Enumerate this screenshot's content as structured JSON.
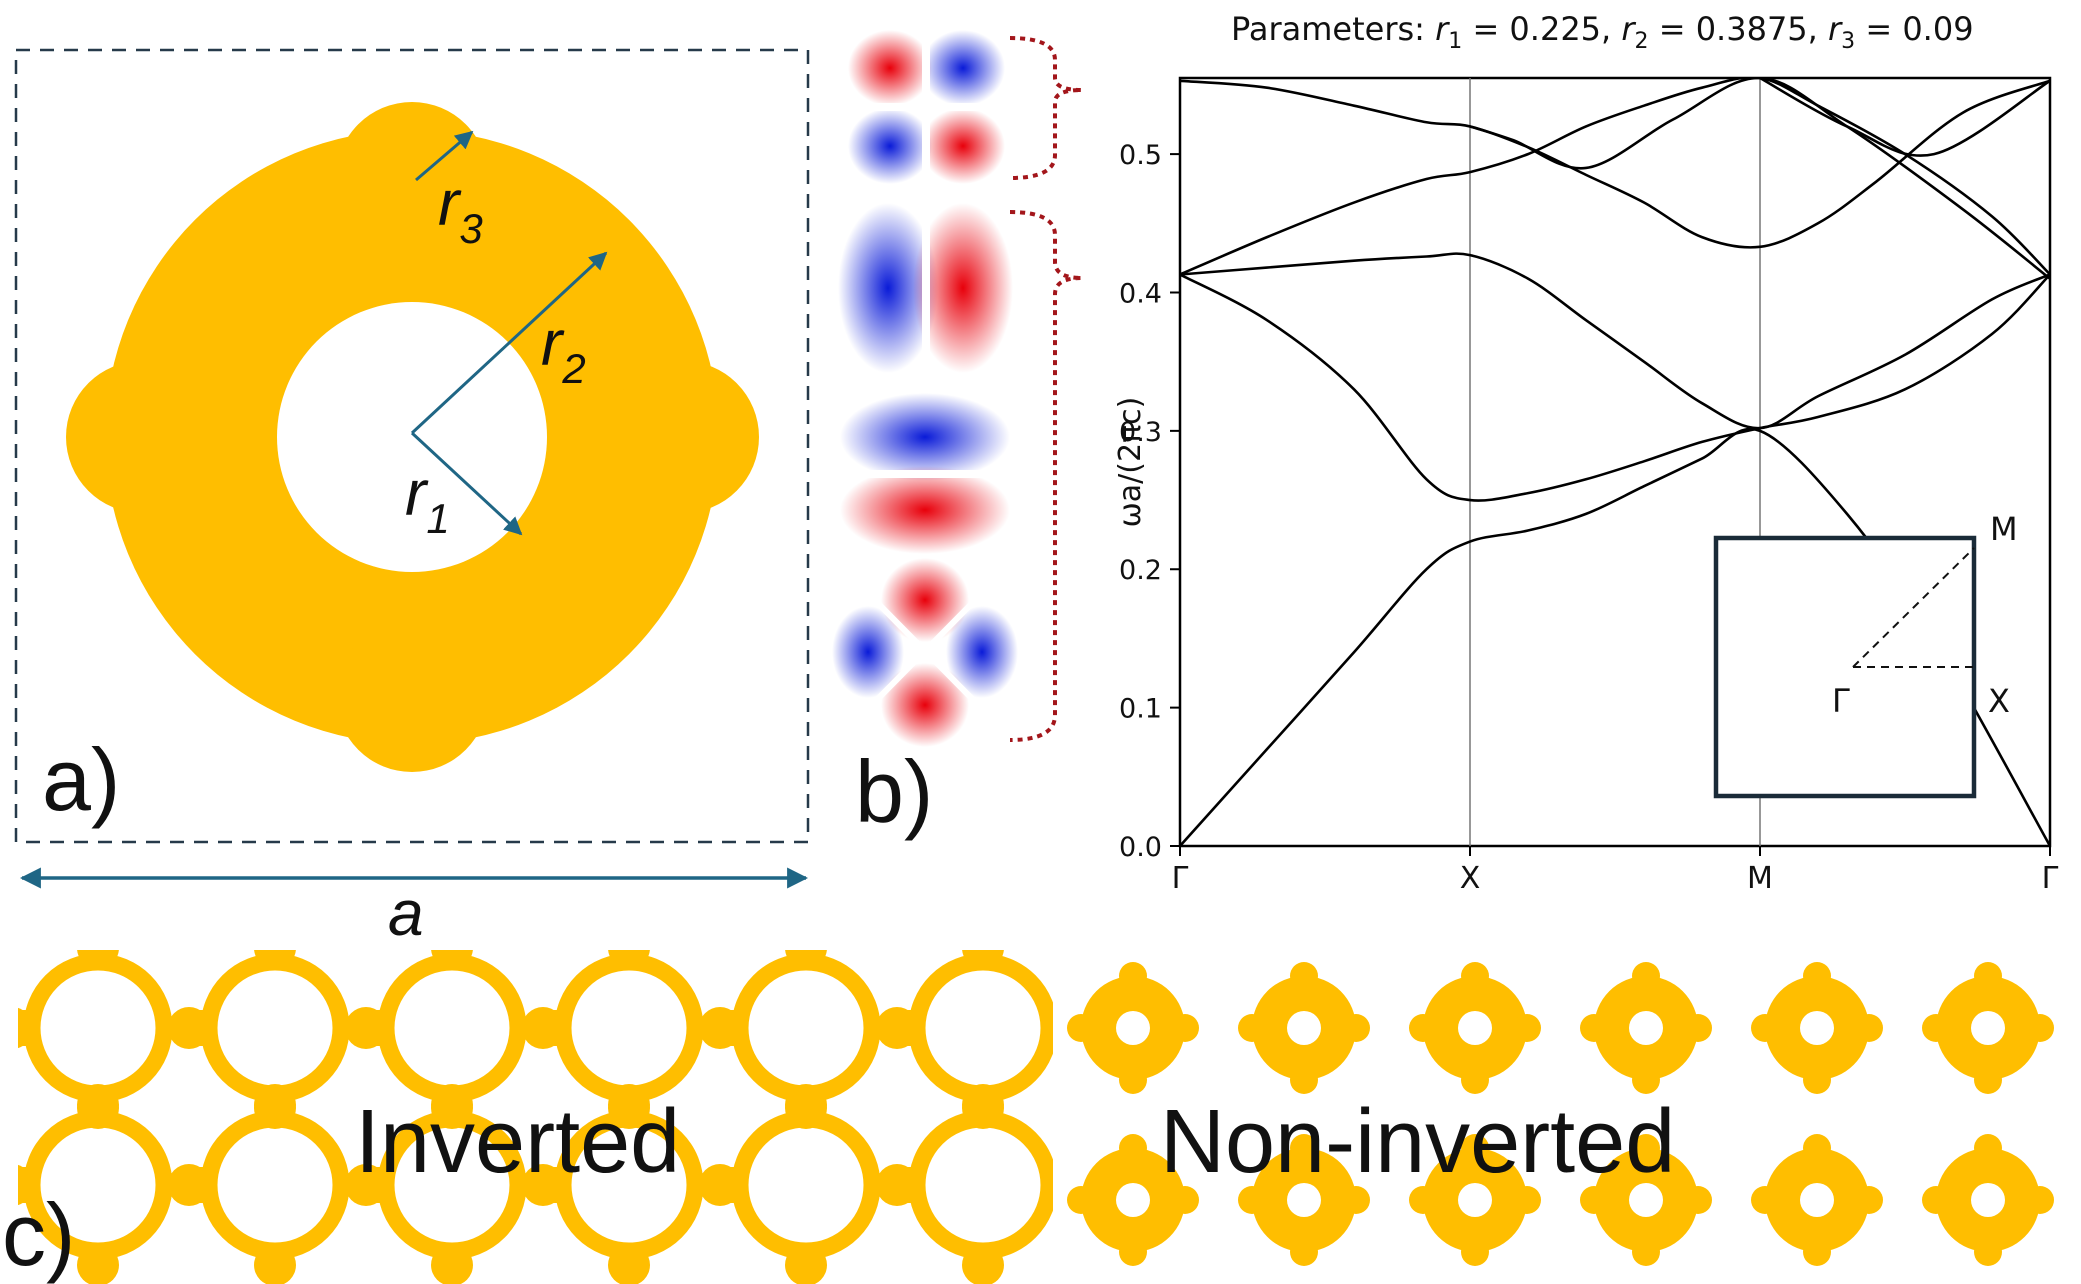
{
  "panel_a": {
    "label": "a)",
    "r1": "r",
    "r1_sub": "1",
    "r2": "r",
    "r2_sub": "2",
    "r3": "r",
    "r3_sub": "3",
    "lattice": "a",
    "fill_color": "#FFBE00",
    "arrow_color": "#1F6685"
  },
  "panel_b": {
    "label": "b)",
    "modes": [
      "quadrupole",
      "dipole-x",
      "dipole-y",
      "quadrupole-45"
    ],
    "bracket_color": "#A3161B",
    "field_colors": {
      "positive": "#E8000B",
      "negative": "#0A1BD8"
    }
  },
  "panel_c": {
    "label": "c)",
    "left_text": "Inverted",
    "right_text": "Non-inverted"
  },
  "chart_data": {
    "type": "line",
    "title": "Parameters: ",
    "title_parts": [
      {
        "t": "r",
        "sub": "1",
        "eq": " = 0.225, "
      },
      {
        "t": "r",
        "sub": "2",
        "eq": " = 0.3875, "
      },
      {
        "t": "r",
        "sub": "3",
        "eq": " = 0.09"
      }
    ],
    "ylabel": "ωa/(2πc)",
    "xlabel": "",
    "ylim": [
      0,
      0.555
    ],
    "x_ticks": [
      "Γ",
      "X",
      "M",
      "Γ"
    ],
    "x_tick_positions": [
      0,
      1,
      2,
      3
    ],
    "y_ticks": [
      "0.0",
      "0.1",
      "0.2",
      "0.3",
      "0.4",
      "0.5"
    ],
    "y_tick_values": [
      0,
      0.1,
      0.2,
      0.3,
      0.4,
      0.5
    ],
    "grid": "vertical lines at X and M",
    "series": [
      {
        "x": [
          0,
          0.3,
          0.6,
          0.85,
          1.0,
          1.2,
          1.4,
          1.6,
          1.8,
          2.0,
          2.3,
          2.6,
          3.0
        ],
        "y": [
          0.0,
          0.07,
          0.14,
          0.2,
          0.22,
          0.228,
          0.24,
          0.26,
          0.28,
          0.3,
          0.24,
          0.15,
          0.0
        ]
      },
      {
        "x": [
          0,
          0.3,
          0.6,
          0.85,
          1.0,
          1.2,
          1.4,
          1.6,
          1.8,
          2.0,
          2.2,
          2.5,
          2.8,
          3.0
        ],
        "y": [
          0.413,
          0.38,
          0.33,
          0.265,
          0.25,
          0.255,
          0.265,
          0.278,
          0.292,
          0.302,
          0.31,
          0.33,
          0.37,
          0.413
        ]
      },
      {
        "x": [
          0,
          0.3,
          0.6,
          0.85,
          1.0,
          1.2,
          1.4,
          1.6,
          1.8,
          2.0,
          2.2,
          2.5,
          2.8,
          3.0
        ],
        "y": [
          0.413,
          0.418,
          0.423,
          0.426,
          0.427,
          0.41,
          0.38,
          0.35,
          0.32,
          0.302,
          0.325,
          0.355,
          0.395,
          0.413
        ]
      },
      {
        "x": [
          0,
          0.3,
          0.6,
          0.85,
          1.0,
          1.2,
          1.4,
          1.6,
          1.8,
          2.0,
          2.2,
          2.5,
          2.8,
          3.0
        ],
        "y": [
          0.413,
          0.44,
          0.465,
          0.482,
          0.487,
          0.5,
          0.52,
          0.535,
          0.548,
          0.555,
          0.535,
          0.5,
          0.455,
          0.413
        ]
      },
      {
        "x": [
          0,
          0.3,
          0.6,
          0.85,
          1.0,
          1.2,
          1.4,
          1.6,
          1.8,
          2.0,
          2.2,
          2.4,
          2.7,
          3.0
        ],
        "y": [
          0.553,
          0.548,
          0.535,
          0.523,
          0.52,
          0.505,
          0.485,
          0.465,
          0.44,
          0.433,
          0.45,
          0.48,
          0.53,
          0.553
        ]
      },
      {
        "x": [
          1.0,
          1.15,
          1.4,
          1.7,
          2.0,
          2.3,
          2.7,
          3.0
        ],
        "y": [
          0.52,
          0.51,
          0.49,
          0.525,
          0.555,
          0.52,
          0.46,
          0.41
        ]
      },
      {
        "x": [
          2.0,
          2.3,
          2.6,
          3.0
        ],
        "y": [
          0.555,
          0.52,
          0.5,
          0.553
        ]
      }
    ],
    "inset": {
      "labels": [
        "M",
        "Γ",
        "X"
      ]
    }
  }
}
